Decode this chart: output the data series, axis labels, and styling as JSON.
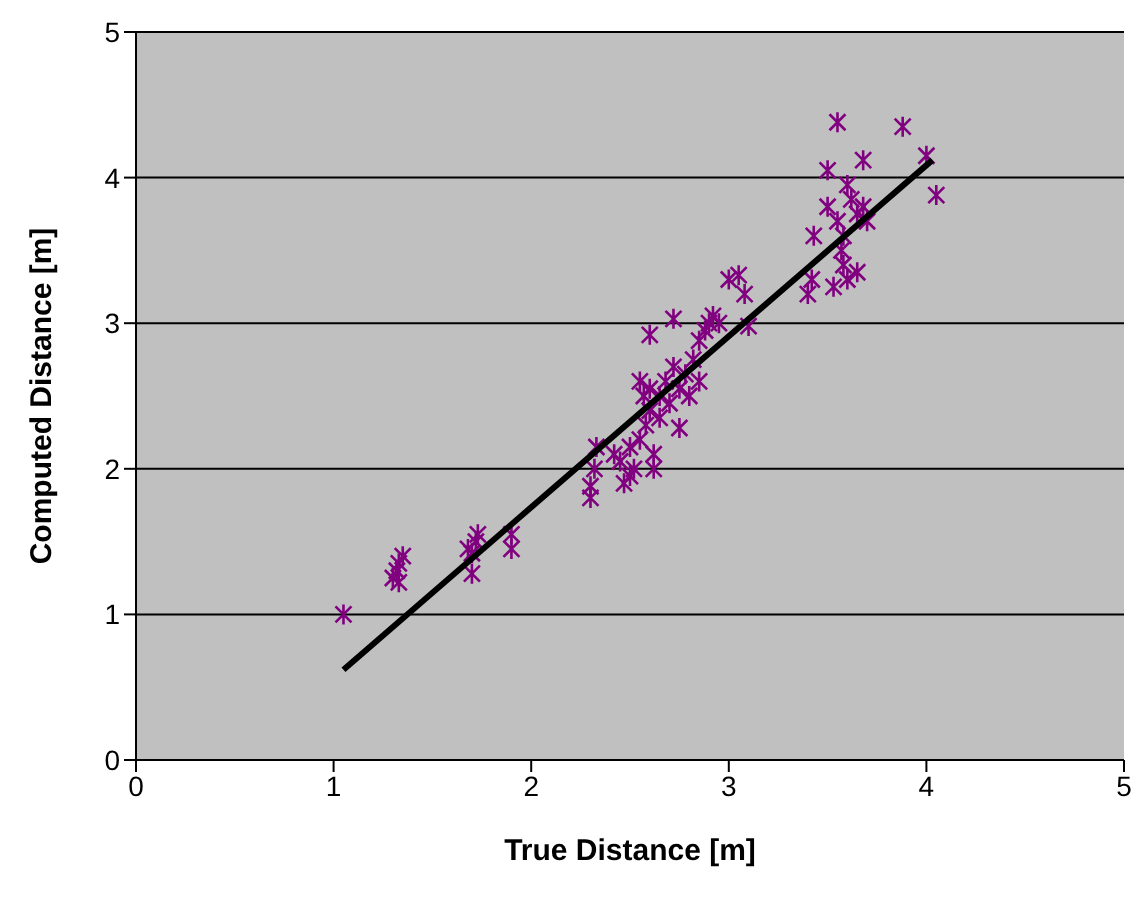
{
  "chart_data": {
    "type": "scatter",
    "xlabel": "True Distance [m]",
    "ylabel": "Computed Distance [m]",
    "xlim": [
      0,
      5
    ],
    "xticks": [
      0,
      1,
      2,
      3,
      4,
      5
    ],
    "ylim": [
      0,
      5
    ],
    "yticks": [
      0,
      1,
      2,
      3,
      4,
      5
    ],
    "grid": "y",
    "legend": false,
    "series": [
      {
        "color": "#800080",
        "marker": "cross",
        "x": [
          1.05,
          1.3,
          1.32,
          1.33,
          1.35,
          1.33,
          1.7,
          1.7,
          1.72,
          1.73,
          1.68,
          1.9,
          1.9,
          2.3,
          2.3,
          2.32,
          2.33,
          2.42,
          2.45,
          2.47,
          2.5,
          2.5,
          2.52,
          2.55,
          2.58,
          2.6,
          2.6,
          2.62,
          2.62,
          2.6,
          2.65,
          2.65,
          2.68,
          2.7,
          2.72,
          2.72,
          2.75,
          2.75,
          2.78,
          2.8,
          2.82,
          2.85,
          2.85,
          2.88,
          2.9,
          2.92,
          2.95,
          3.0,
          3.05,
          3.08,
          3.1,
          2.57,
          2.55,
          3.4,
          3.42,
          3.43,
          3.5,
          3.5,
          3.55,
          3.53,
          3.55,
          3.57,
          3.58,
          3.6,
          3.6,
          3.62,
          3.65,
          3.65,
          3.68,
          3.68,
          3.7,
          3.88,
          4.0,
          4.05,
          3.58
        ],
        "values": [
          1.0,
          1.25,
          1.3,
          1.35,
          1.4,
          1.22,
          1.28,
          1.42,
          1.5,
          1.55,
          1.45,
          1.45,
          1.55,
          1.8,
          1.88,
          2.0,
          2.15,
          2.1,
          2.05,
          1.9,
          1.95,
          2.15,
          2.0,
          2.2,
          2.3,
          2.4,
          2.55,
          2.1,
          2.0,
          2.92,
          2.5,
          2.35,
          2.6,
          2.45,
          3.03,
          2.7,
          2.28,
          2.55,
          2.65,
          2.5,
          2.75,
          2.6,
          2.88,
          2.95,
          3.0,
          3.05,
          3.0,
          3.3,
          3.33,
          3.2,
          2.98,
          2.5,
          2.6,
          3.2,
          3.3,
          3.6,
          3.8,
          4.05,
          4.38,
          3.25,
          3.7,
          3.5,
          3.4,
          3.95,
          3.3,
          3.85,
          3.75,
          3.35,
          4.12,
          3.8,
          3.7,
          4.35,
          4.15,
          3.88,
          3.6
        ]
      },
      {
        "type": "line",
        "color": "#000000",
        "marker": "none",
        "line_style": "solid",
        "x": [
          1.05,
          4.03
        ],
        "values": [
          0.62,
          4.12
        ]
      }
    ]
  }
}
